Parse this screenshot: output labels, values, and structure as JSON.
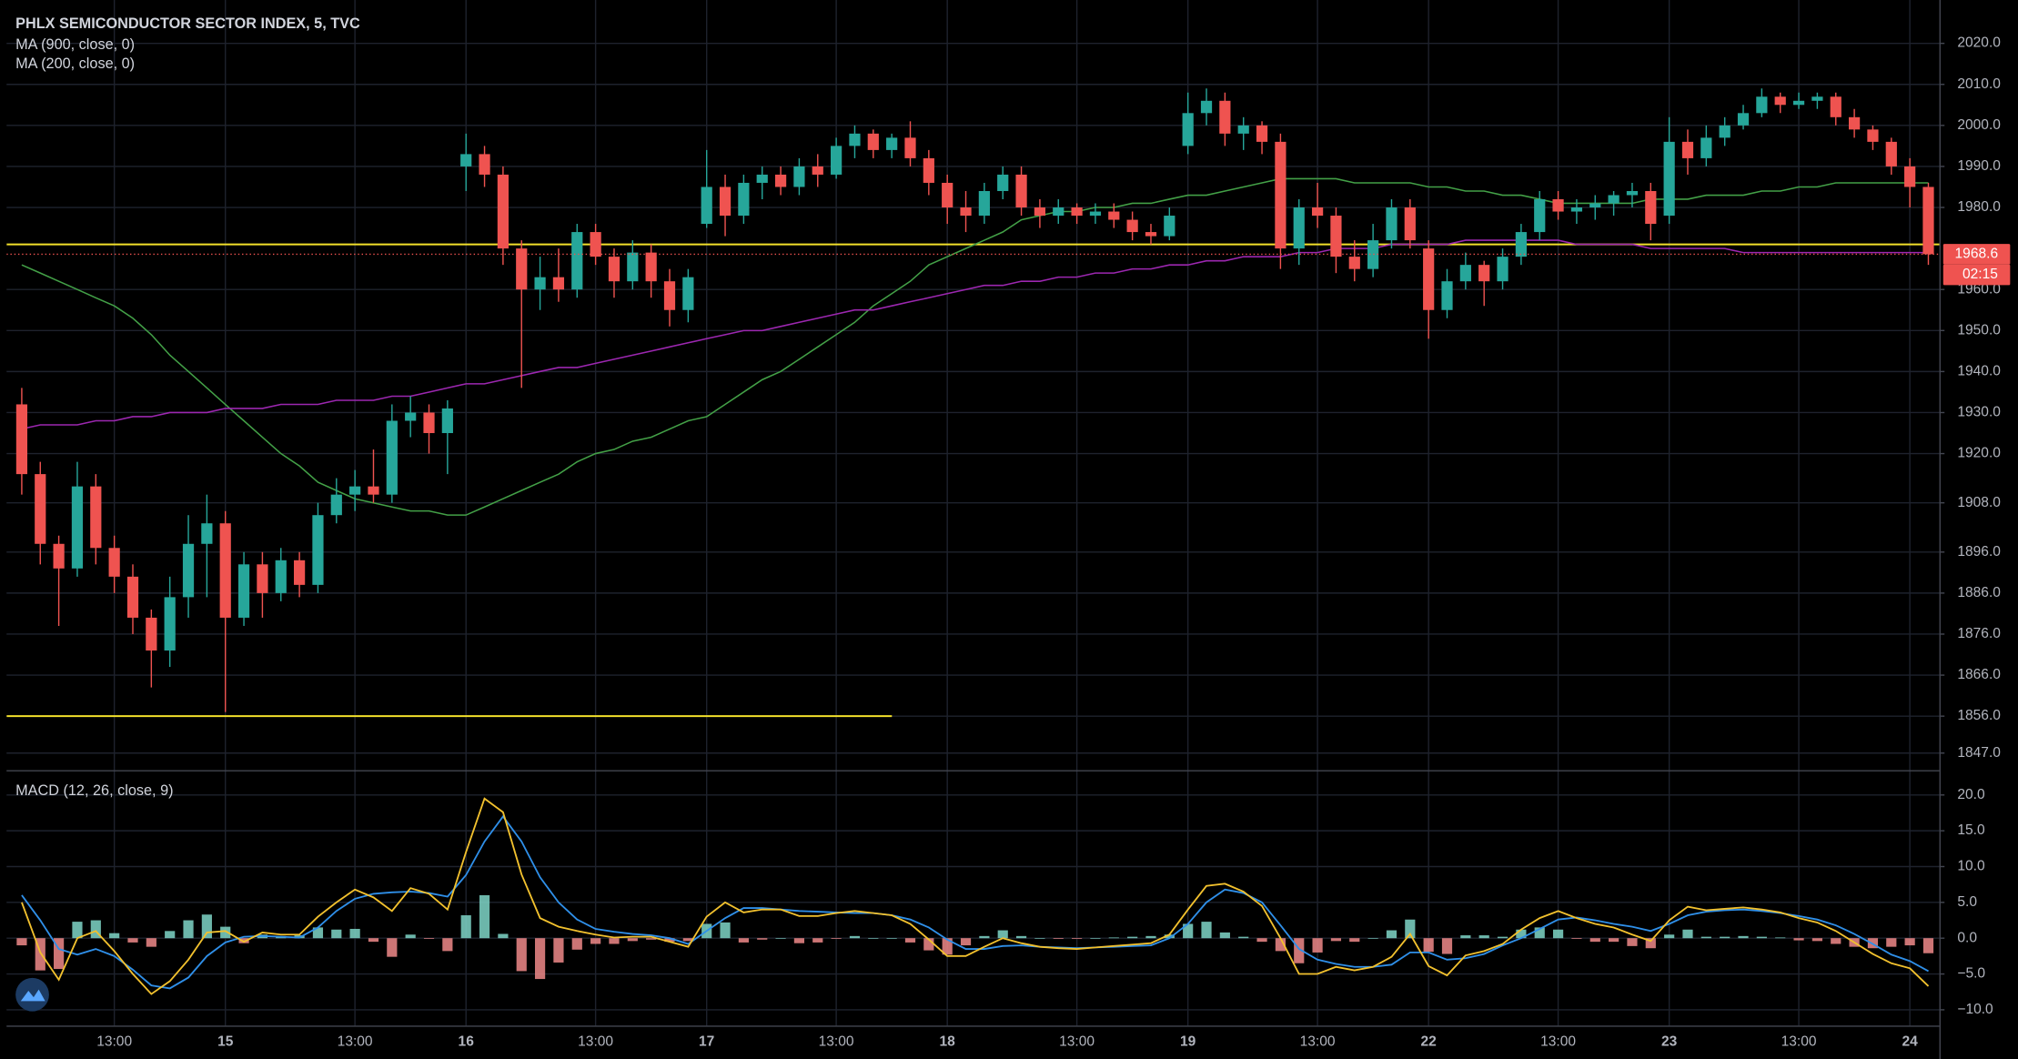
{
  "chart_data": [
    {
      "type": "candlestick",
      "title": "PHLX SEMICONDUCTOR SECTOR INDEX, 5, TVC",
      "categories": [
        null,
        null,
        null,
        null,
        null,
        "13:00",
        null,
        null,
        null,
        null,
        null,
        "15",
        null,
        null,
        null,
        null,
        null,
        null,
        "13:00",
        null,
        null,
        null,
        null,
        null,
        "16",
        null,
        null,
        null,
        null,
        null,
        null,
        "13:00",
        null,
        null,
        null,
        null,
        null,
        "17",
        null,
        null,
        null,
        null,
        null,
        null,
        "13:00",
        null,
        null,
        null,
        null,
        null,
        "18",
        null,
        null,
        null,
        null,
        null,
        null,
        "13:00",
        null,
        null,
        null,
        null,
        null,
        "19",
        null,
        null,
        null,
        null,
        null,
        null,
        "13:00",
        null,
        null,
        null,
        null,
        null,
        "22",
        null,
        null,
        null,
        null,
        null,
        null,
        "13:00",
        null,
        null,
        null,
        null,
        null,
        "23",
        null,
        null,
        null,
        null,
        null,
        null,
        "13:00",
        null,
        null,
        null,
        null,
        null,
        "24",
        null
      ],
      "open": [
        1932,
        1915,
        1898,
        1892,
        1912,
        1897,
        1890,
        1880,
        1872,
        1885,
        1898,
        1903,
        1880,
        1893,
        1886,
        1894,
        1888,
        1905,
        1910,
        1912,
        1910,
        1928,
        1930,
        1925,
        1990,
        1993,
        1988,
        1970,
        1960,
        1963,
        1960,
        1974,
        1968,
        1962,
        1969,
        1962,
        1955,
        1976,
        1985,
        1978,
        1986,
        1988,
        1985,
        1990,
        1988,
        1995,
        1998,
        1994,
        1997,
        1992,
        1986,
        1980,
        1978,
        1984,
        1988,
        1980,
        1978,
        1980,
        1978,
        1979,
        1977,
        1974,
        1973,
        1995,
        2003,
        2006,
        1998,
        2000,
        1996,
        1970,
        1980,
        1978,
        1968,
        1965,
        1972,
        1980,
        1970,
        1955,
        1962,
        1966,
        1962,
        1968,
        1974,
        1982,
        1979,
        1980,
        1981,
        1983,
        1984,
        1978,
        1996,
        1992,
        1997,
        2000,
        2003,
        2007,
        2005,
        2006,
        2007,
        2002,
        1999,
        1996,
        1990,
        1985
      ],
      "high": [
        1936,
        1918,
        1900,
        1918,
        1915,
        1900,
        1893,
        1882,
        1890,
        1905,
        1910,
        1906,
        1896,
        1896,
        1897,
        1896,
        1908,
        1914,
        1916,
        1921,
        1932,
        1934,
        1932,
        1933,
        1998,
        1995,
        1990,
        1972,
        1968,
        1970,
        1976,
        1976,
        1970,
        1972,
        1971,
        1965,
        1965,
        1994,
        1988,
        1988,
        1990,
        1990,
        1992,
        1993,
        1997,
        2000,
        1999,
        1998,
        2001,
        1994,
        1988,
        1984,
        1986,
        1990,
        1990,
        1982,
        1982,
        1981,
        1981,
        1981,
        1979,
        1976,
        1980,
        2008,
        2009,
        2008,
        2002,
        2001,
        1998,
        1982,
        1986,
        1980,
        1972,
        1976,
        1982,
        1982,
        1972,
        1965,
        1969,
        1967,
        1970,
        1976,
        1984,
        1984,
        1982,
        1983,
        1984,
        1986,
        1986,
        2002,
        1999,
        2000,
        2002,
        2005,
        2009,
        2008,
        2008,
        2008,
        2008,
        2004,
        2000,
        1997,
        1992,
        1986
      ],
      "low": [
        1910,
        1893,
        1878,
        1890,
        1893,
        1886,
        1876,
        1863,
        1868,
        1880,
        1885,
        1857,
        1878,
        1880,
        1884,
        1885,
        1886,
        1903,
        1906,
        1908,
        1908,
        1924,
        1920,
        1915,
        1984,
        1985,
        1966,
        1936,
        1955,
        1957,
        1958,
        1966,
        1958,
        1960,
        1958,
        1951,
        1952,
        1975,
        1973,
        1976,
        1982,
        1983,
        1983,
        1985,
        1987,
        1992,
        1992,
        1992,
        1990,
        1983,
        1976,
        1974,
        1976,
        1982,
        1978,
        1975,
        1976,
        1976,
        1976,
        1975,
        1972,
        1971,
        1972,
        1993,
        2000,
        1995,
        1994,
        1993,
        1965,
        1966,
        1975,
        1964,
        1962,
        1963,
        1970,
        1970,
        1948,
        1953,
        1960,
        1956,
        1960,
        1966,
        1972,
        1977,
        1976,
        1977,
        1978,
        1980,
        1972,
        1976,
        1988,
        1990,
        1995,
        1999,
        2002,
        2003,
        2004,
        2004,
        2000,
        1997,
        1994,
        1988,
        1980,
        1966
      ],
      "close": [
        1915,
        1898,
        1892,
        1912,
        1897,
        1890,
        1880,
        1872,
        1885,
        1898,
        1903,
        1880,
        1893,
        1886,
        1894,
        1888,
        1905,
        1910,
        1912,
        1910,
        1928,
        1930,
        1925,
        1931,
        1993,
        1988,
        1970,
        1960,
        1963,
        1960,
        1974,
        1968,
        1962,
        1969,
        1962,
        1955,
        1963,
        1985,
        1978,
        1986,
        1988,
        1985,
        1990,
        1988,
        1995,
        1998,
        1994,
        1997,
        1992,
        1986,
        1980,
        1978,
        1984,
        1988,
        1980,
        1978,
        1980,
        1978,
        1979,
        1977,
        1974,
        1973,
        1978,
        2003,
        2006,
        1998,
        2000,
        1996,
        1970,
        1980,
        1978,
        1968,
        1965,
        1972,
        1980,
        1972,
        1955,
        1962,
        1966,
        1962,
        1968,
        1974,
        1982,
        1979,
        1980,
        1981,
        1983,
        1984,
        1976,
        1996,
        1992,
        1997,
        2000,
        2003,
        2007,
        2005,
        2006,
        2007,
        2002,
        1999,
        1996,
        1990,
        1985,
        1968.6
      ],
      "up_color": "#26a69a",
      "down_color": "#ef5350",
      "series": [
        {
          "name": "MA (900, close, 0)",
          "color": "#43a047",
          "values": [
            1966,
            1964,
            1962,
            1960,
            1958,
            1956,
            1953,
            1949,
            1944,
            1940,
            1936,
            1932,
            1928,
            1924,
            1920,
            1917,
            1913,
            1911,
            1909,
            1908,
            1907,
            1906,
            1906,
            1905,
            1905,
            1907,
            1909,
            1911,
            1913,
            1915,
            1918,
            1920,
            1921,
            1923,
            1924,
            1926,
            1928,
            1929,
            1932,
            1935,
            1938,
            1940,
            1943,
            1946,
            1949,
            1952,
            1956,
            1959,
            1962,
            1966,
            1968,
            1970,
            1972,
            1974,
            1977,
            1978,
            1979,
            1979,
            1980,
            1980,
            1981,
            1981,
            1982,
            1983,
            1983,
            1984,
            1985,
            1986,
            1987,
            1987,
            1987,
            1987,
            1986,
            1986,
            1986,
            1986,
            1985,
            1985,
            1984,
            1984,
            1983,
            1983,
            1982,
            1981,
            1981,
            1981,
            1981,
            1981,
            1982,
            1982,
            1982,
            1983,
            1983,
            1983,
            1984,
            1984,
            1985,
            1985,
            1986,
            1986,
            1986,
            1986,
            1986,
            1986
          ]
        },
        {
          "name": "MA (200, close, 0)",
          "color": "#9c27b0",
          "values": [
            1926,
            1927,
            1927,
            1927,
            1928,
            1928,
            1929,
            1929,
            1930,
            1930,
            1930,
            1931,
            1931,
            1931,
            1932,
            1932,
            1932,
            1933,
            1933,
            1933,
            1934,
            1934,
            1935,
            1936,
            1937,
            1937,
            1938,
            1939,
            1940,
            1941,
            1941,
            1942,
            1943,
            1944,
            1945,
            1946,
            1947,
            1948,
            1949,
            1950,
            1950,
            1951,
            1952,
            1953,
            1954,
            1955,
            1955,
            1956,
            1957,
            1958,
            1959,
            1960,
            1961,
            1961,
            1962,
            1962,
            1963,
            1963,
            1964,
            1964,
            1965,
            1965,
            1966,
            1966,
            1967,
            1967,
            1968,
            1968,
            1968,
            1969,
            1969,
            1970,
            1970,
            1970,
            1971,
            1971,
            1971,
            1971,
            1972,
            1972,
            1972,
            1972,
            1972,
            1972,
            1971,
            1971,
            1971,
            1971,
            1970,
            1970,
            1970,
            1970,
            1970,
            1969,
            1969,
            1969,
            1969,
            1969,
            1969,
            1969,
            1969,
            1969,
            1969,
            1969
          ]
        }
      ],
      "horizontal_lines": [
        {
          "value": 1971,
          "color": "#f2e02b"
        },
        {
          "value": 1856,
          "color": "#f2e02b"
        }
      ],
      "last_price": 1968.6,
      "countdown": "02:15",
      "ylim": [
        1843,
        2029
      ],
      "yticks": [
        {
          "value": 2020,
          "label": "2020.0"
        },
        {
          "value": 2010,
          "label": "2010.0"
        },
        {
          "value": 2000,
          "label": "2000.0"
        },
        {
          "value": 1990,
          "label": "1990.0"
        },
        {
          "value": 1980,
          "label": "1980.0"
        },
        {
          "value": 1960,
          "label": "1960.0"
        },
        {
          "value": 1950,
          "label": "1950.0"
        },
        {
          "value": 1940,
          "label": "1940.0"
        },
        {
          "value": 1930,
          "label": "1930.0"
        },
        {
          "value": 1920,
          "label": "1920.0"
        },
        {
          "value": 1908,
          "label": "1908.0"
        },
        {
          "value": 1896,
          "label": "1896.0"
        },
        {
          "value": 1886,
          "label": "1886.0"
        },
        {
          "value": 1876,
          "label": "1876.0"
        },
        {
          "value": 1866,
          "label": "1866.0"
        },
        {
          "value": 1856,
          "label": "1856.0"
        },
        {
          "value": 1847,
          "label": "1847.0"
        }
      ],
      "grid": true
    },
    {
      "type": "macd",
      "title": "MACD (12, 26, close, 9)",
      "series": [
        {
          "color": "#f2c12e",
          "values": [
            5.0,
            -2.0,
            -5.8,
            0,
            1.0,
            -1.8,
            -5.0,
            -7.8,
            -6.0,
            -3.0,
            0.8,
            1.0,
            -0.5,
            0.8,
            0.5,
            0.5,
            3.0,
            5.0,
            6.8,
            5.7,
            3.8,
            7.0,
            6.2,
            4.0,
            12.0,
            19.5,
            17.6,
            8.9,
            2.8,
            1.6,
            1.0,
            0.5,
            0.1,
            0.2,
            0.2,
            -0.5,
            -1.2,
            3.0,
            5.0,
            3.6,
            4.0,
            4.0,
            3.1,
            3.1,
            3.5,
            3.8,
            3.5,
            3.2,
            2.0,
            -0.2,
            -2.5,
            -2.5,
            -1.2,
            0,
            -0.7,
            -1.2,
            -1.4,
            -1.5,
            -1.3,
            -1.1,
            -0.9,
            -0.7,
            0.5,
            4.0,
            7.3,
            7.6,
            6.5,
            4.5,
            0,
            -5.0,
            -5.0,
            -4.0,
            -4.5,
            -4.0,
            -2.6,
            0.6,
            -3.9,
            -5.2,
            -2.4,
            -1.8,
            -0.8,
            1.2,
            2.8,
            3.8,
            2.8,
            2.0,
            1.5,
            0.5,
            -0.4,
            2.5,
            4.4,
            3.9,
            4.1,
            4.3,
            4.0,
            3.6,
            2.8,
            2.2,
            1.0,
            -0.6,
            -2.2,
            -3.5,
            -4.2,
            -6.7
          ]
        },
        {
          "color": "#2f8fe8",
          "values": [
            6.0,
            2.5,
            -1.5,
            -2.3,
            -1.5,
            -2.5,
            -4.4,
            -6.6,
            -7.0,
            -5.5,
            -2.5,
            -0.6,
            0.2,
            0.3,
            0.2,
            0.1,
            1.5,
            3.8,
            5.5,
            6.2,
            6.4,
            6.5,
            6.3,
            5.8,
            8.8,
            13.5,
            17.0,
            13.5,
            8.5,
            5.0,
            2.6,
            1.3,
            0.9,
            0.6,
            0.4,
            0.0,
            -0.8,
            1.0,
            2.8,
            4.2,
            4.2,
            4.0,
            3.8,
            3.7,
            3.6,
            3.5,
            3.5,
            3.2,
            2.6,
            1.5,
            -0.2,
            -1.5,
            -1.5,
            -1.1,
            -1.0,
            -1.2,
            -1.3,
            -1.4,
            -1.3,
            -1.2,
            -1.1,
            -1.0,
            0.0,
            2.0,
            5.0,
            6.8,
            6.3,
            5.0,
            1.8,
            -1.5,
            -3.0,
            -3.6,
            -4.0,
            -4.0,
            -3.7,
            -2.0,
            -2.0,
            -3.0,
            -2.8,
            -2.2,
            -1.0,
            0.0,
            1.3,
            2.6,
            2.9,
            2.5,
            2.0,
            1.6,
            1.0,
            2.0,
            3.2,
            3.7,
            3.9,
            4.0,
            3.8,
            3.5,
            3.1,
            2.6,
            1.8,
            0.6,
            -0.8,
            -2.3,
            -3.2,
            -4.6
          ]
        }
      ],
      "histogram": [
        -1.0,
        -4.5,
        -4.3,
        2.3,
        2.5,
        0.7,
        -0.6,
        -1.2,
        1.0,
        2.5,
        3.3,
        1.6,
        -0.7,
        0.5,
        0.3,
        0.4,
        1.5,
        1.2,
        1.3,
        -0.5,
        -2.6,
        0.5,
        -0.1,
        -1.8,
        3.2,
        6.0,
        0.6,
        -4.6,
        -5.7,
        -3.4,
        -1.6,
        -0.8,
        -0.8,
        -0.4,
        -0.2,
        -0.5,
        -0.4,
        2.0,
        2.2,
        -0.6,
        -0.2,
        0.0,
        -0.7,
        -0.6,
        -0.1,
        0.3,
        0.0,
        0.0,
        -0.6,
        -1.7,
        -2.3,
        -1.0,
        0.3,
        1.1,
        0.3,
        0.0,
        -0.1,
        -0.1,
        0.0,
        0.1,
        0.2,
        0.3,
        0.5,
        2.0,
        2.3,
        0.8,
        0.2,
        -0.5,
        -1.8,
        -3.5,
        -2.0,
        -0.4,
        -0.5,
        0.0,
        1.1,
        2.6,
        -1.9,
        -2.2,
        0.4,
        0.4,
        0.2,
        1.2,
        1.5,
        1.2,
        -0.1,
        -0.5,
        -0.5,
        -1.1,
        -1.4,
        0.5,
        1.2,
        0.2,
        0.2,
        0.3,
        0.2,
        0.1,
        -0.3,
        -0.4,
        -0.8,
        -1.2,
        -1.4,
        -1.2,
        -1.0,
        -2.1
      ],
      "positive_color": "#7fd6c8",
      "negative_color": "#f08a8a",
      "ylim": [
        -12.2,
        23.2
      ],
      "yticks": [
        {
          "value": 20,
          "label": "20.0"
        },
        {
          "value": 15,
          "label": "15.0"
        },
        {
          "value": 10,
          "label": "10.0"
        },
        {
          "value": 5,
          "label": "5.0"
        },
        {
          "value": 0,
          "label": "0.0"
        },
        {
          "value": -5,
          "label": "−5.0"
        },
        {
          "value": -10,
          "label": "−10.0"
        }
      ],
      "grid": true
    }
  ]
}
